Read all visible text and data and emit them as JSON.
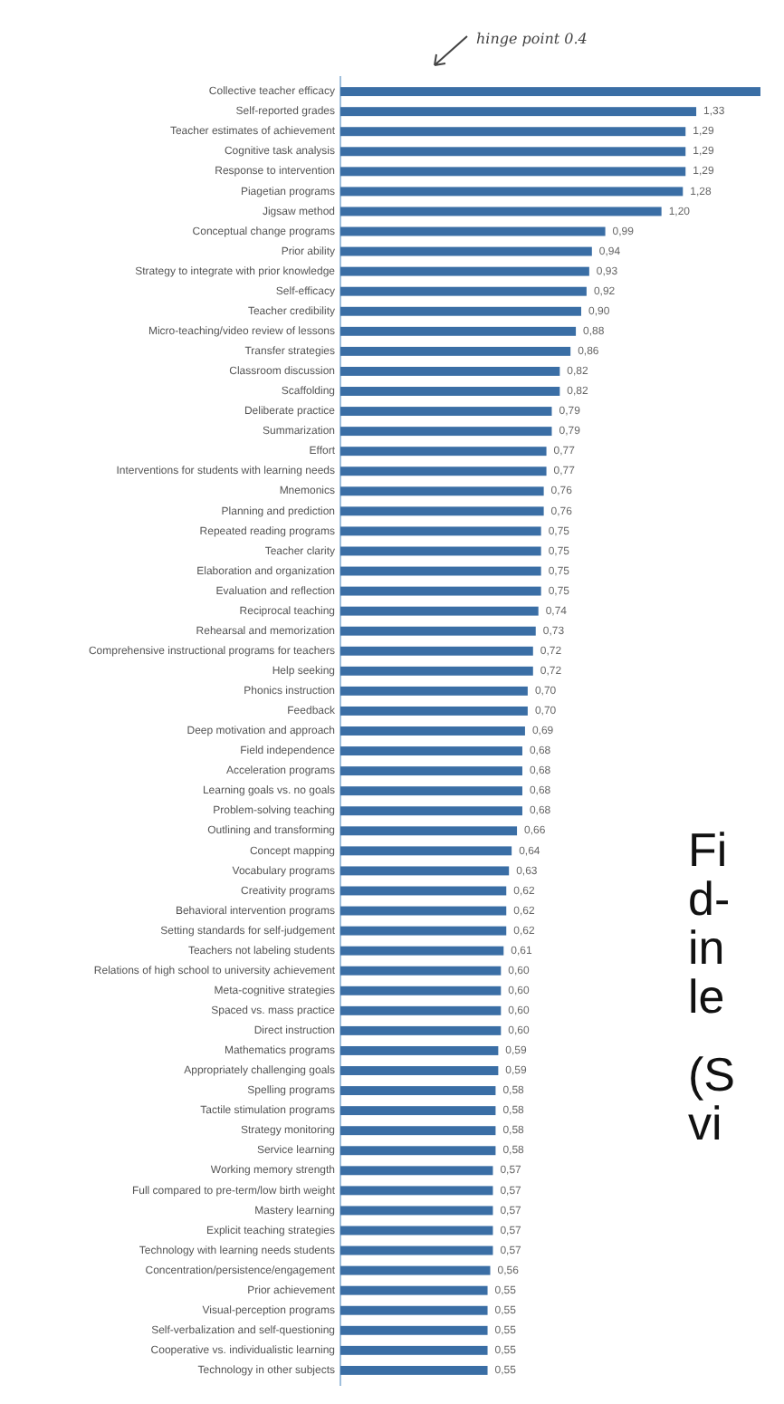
{
  "chart_data": {
    "type": "bar",
    "orientation": "horizontal",
    "color": "#3a6ea5",
    "categories": [
      "Collective teacher efficacy",
      "Self-reported grades",
      "Teacher estimates of achievement",
      "Cognitive task analysis",
      "Response to intervention",
      "Piagetian programs",
      "Jigsaw method",
      "Conceptual change programs",
      "Prior ability",
      "Strategy to integrate with prior knowledge",
      "Self-efficacy",
      "Teacher credibility",
      "Micro-teaching/video review of lessons",
      "Transfer strategies",
      "Classroom discussion",
      "Scaffolding",
      "Deliberate practice",
      "Summarization",
      "Effort",
      "Interventions for students with learning needs",
      "Mnemonics",
      "Planning and prediction",
      "Repeated reading programs",
      "Teacher clarity",
      "Elaboration and organization",
      "Evaluation and reflection",
      "Reciprocal teaching",
      "Rehearsal and memorization",
      "Comprehensive instructional programs for teachers",
      "Help seeking",
      "Phonics instruction",
      "Feedback",
      "Deep motivation and approach",
      "Field independence",
      "Acceleration programs",
      "Learning goals vs. no goals",
      "Problem-solving teaching",
      "Outlining and transforming",
      "Concept mapping",
      "Vocabulary programs",
      "Creativity programs",
      "Behavioral intervention programs",
      "Setting standards for self-judgement",
      "Teachers not labeling students",
      "Relations of high school to university achievement",
      "Meta-cognitive strategies",
      "Spaced vs. mass practice",
      "Direct instruction",
      "Mathematics programs",
      "Appropriately challenging goals",
      "Spelling programs",
      "Tactile stimulation programs",
      "Strategy monitoring",
      "Service learning",
      "Working memory strength",
      "Full compared to pre-term/low birth weight",
      "Mastery learning",
      "Explicit teaching strategies",
      "Technology with learning needs students",
      "Concentration/persistence/engagement",
      "Prior achievement",
      "Visual-perception programs",
      "Self-verbalization and self-questioning",
      "Cooperative vs. individualistic learning",
      "Technology in other subjects"
    ],
    "values": [
      1.57,
      1.33,
      1.29,
      1.29,
      1.29,
      1.28,
      1.2,
      0.99,
      0.94,
      0.93,
      0.92,
      0.9,
      0.88,
      0.86,
      0.82,
      0.82,
      0.79,
      0.79,
      0.77,
      0.77,
      0.76,
      0.76,
      0.75,
      0.75,
      0.75,
      0.75,
      0.74,
      0.73,
      0.72,
      0.72,
      0.7,
      0.7,
      0.69,
      0.68,
      0.68,
      0.68,
      0.68,
      0.66,
      0.64,
      0.63,
      0.62,
      0.62,
      0.62,
      0.61,
      0.6,
      0.6,
      0.6,
      0.6,
      0.59,
      0.59,
      0.58,
      0.58,
      0.58,
      0.58,
      0.57,
      0.57,
      0.57,
      0.57,
      0.57,
      0.56,
      0.55,
      0.55,
      0.55,
      0.55,
      0.55
    ],
    "value_labels": [
      null,
      "1,33",
      "1,29",
      "1,29",
      "1,29",
      "1,28",
      "1,20",
      "0,99",
      "0,94",
      "0,93",
      "0,92",
      "0,90",
      "0,88",
      "0,86",
      "0,82",
      "0,82",
      "0,79",
      "0,79",
      "0,77",
      "0,77",
      "0,76",
      "0,76",
      "0,75",
      "0,75",
      "0,75",
      "0,75",
      "0,74",
      "0,73",
      "0,72",
      "0,72",
      "0,70",
      "0,70",
      "0,69",
      "0,68",
      "0,68",
      "0,68",
      "0,68",
      "0,66",
      "0,64",
      "0,63",
      "0,62",
      "0,62",
      "0,62",
      "0,61",
      "0,60",
      "0,60",
      "0,60",
      "0,60",
      "0,59",
      "0,59",
      "0,58",
      "0,58",
      "0,58",
      "0,58",
      "0,57",
      "0,57",
      "0,57",
      "0,57",
      "0,57",
      "0,56",
      "0,55",
      "0,55",
      "0,55",
      "0,55",
      "0,55"
    ],
    "annotations": [
      "hinge point 0.4",
      "Fi",
      "d-",
      "in",
      "le",
      "(S",
      "vi"
    ]
  }
}
